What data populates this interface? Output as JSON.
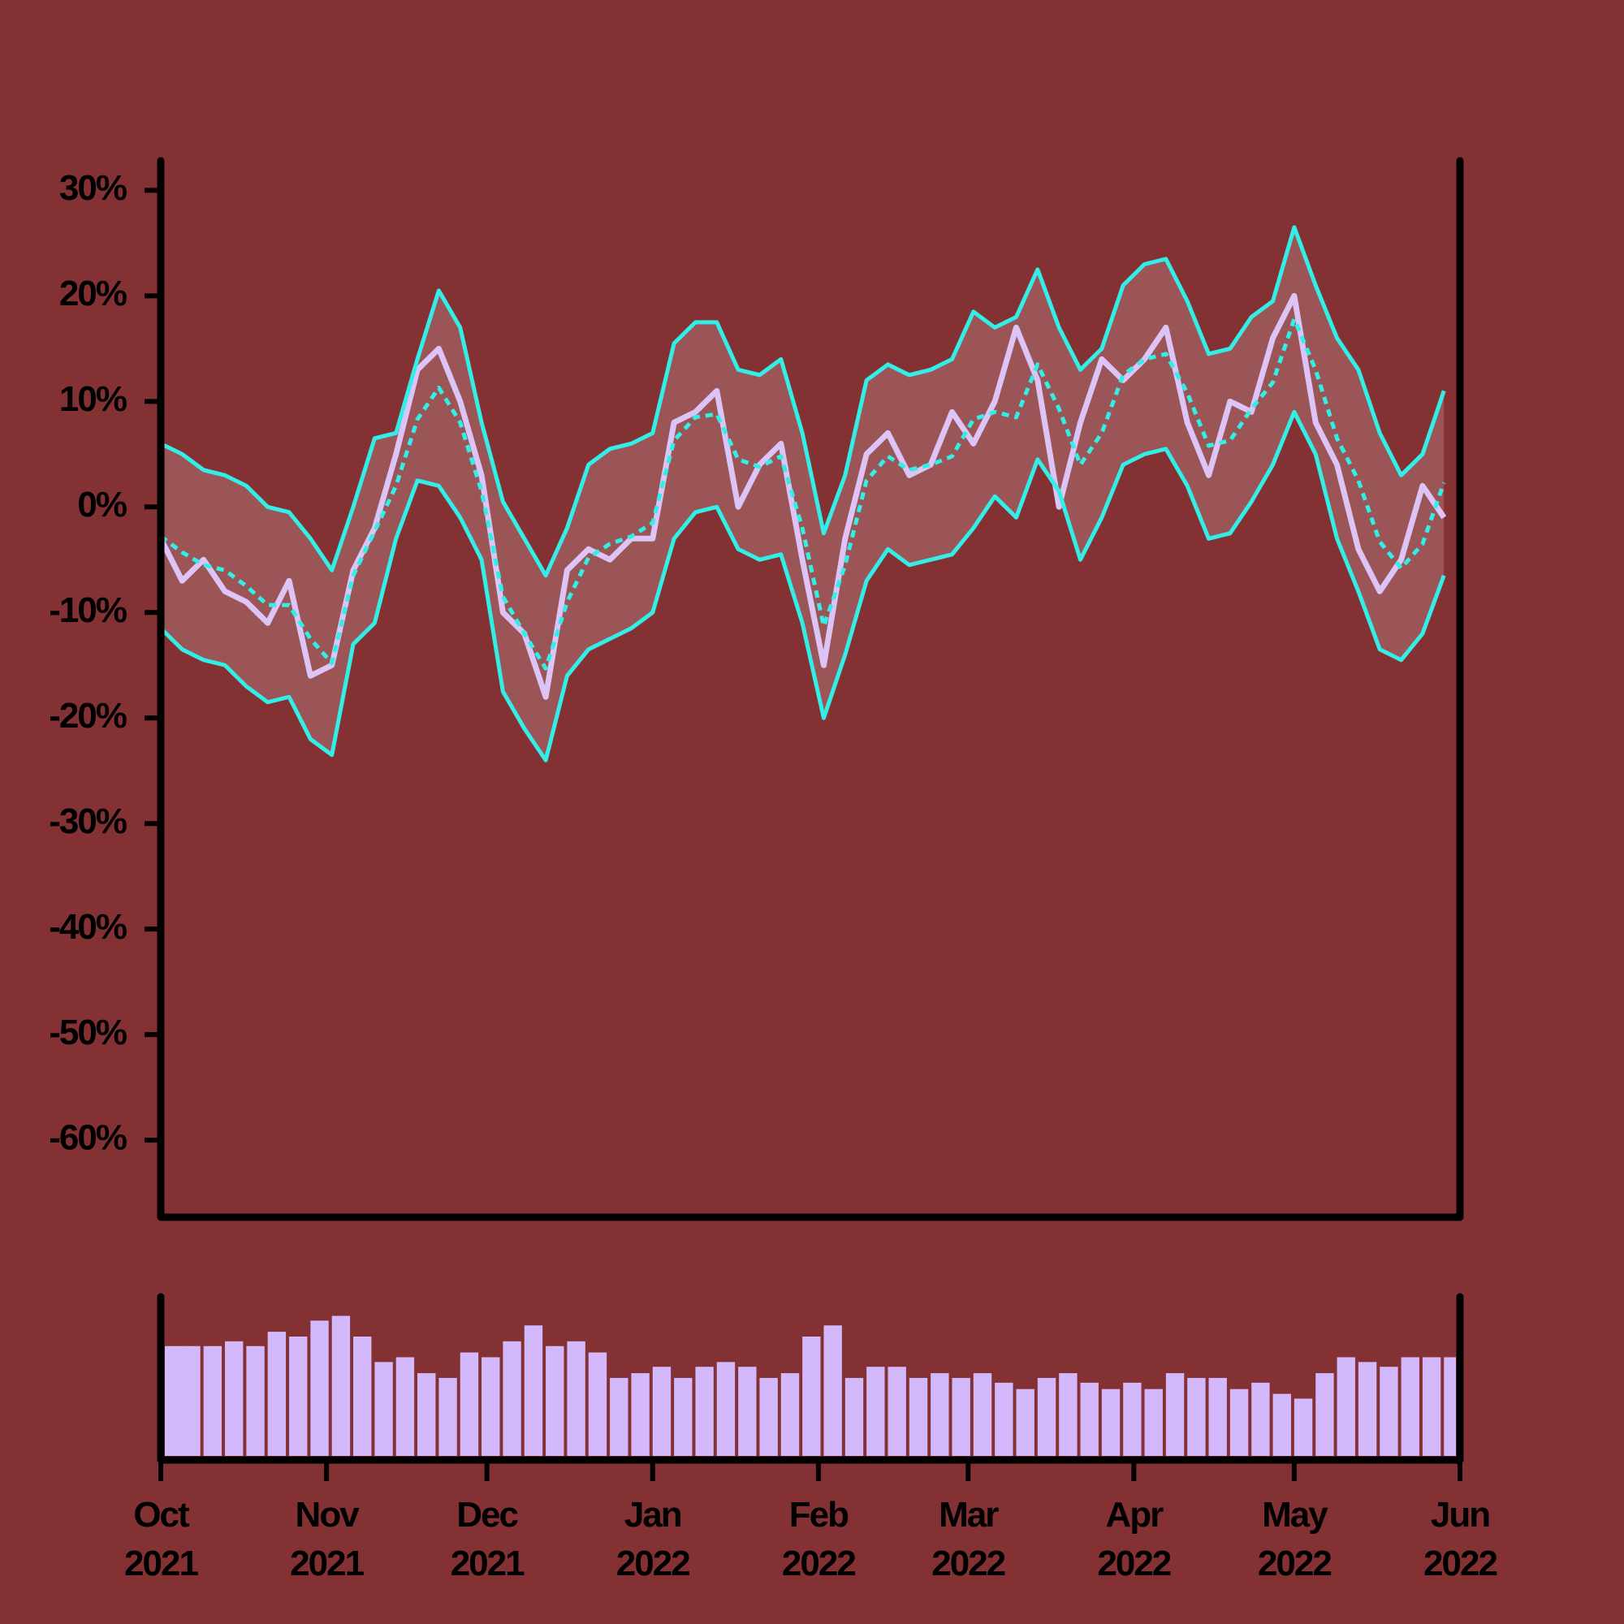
{
  "chart_data": [
    {
      "type": "line",
      "x": [
        0,
        4,
        8,
        12,
        16,
        20,
        24,
        28,
        32,
        36,
        40,
        44,
        48,
        52,
        56,
        60,
        64,
        68,
        72,
        76,
        80,
        84,
        88,
        92,
        96,
        100,
        104,
        108,
        112,
        116,
        120,
        124,
        128,
        132,
        136,
        140,
        144,
        148,
        152,
        156,
        160,
        164,
        168,
        172,
        176,
        180,
        184,
        188,
        192,
        196,
        200,
        204,
        208,
        212,
        216,
        220,
        224,
        228,
        232,
        236,
        240
      ],
      "xlim": [
        0,
        243
      ],
      "ylim": [
        -67.3,
        32.8
      ],
      "yticks": [
        {
          "value": 30,
          "label": "30%"
        },
        {
          "value": 20,
          "label": "20%"
        },
        {
          "value": 10,
          "label": "10%"
        },
        {
          "value": 0,
          "label": "0%"
        },
        {
          "value": -10,
          "label": "-10%"
        },
        {
          "value": -20,
          "label": "-20%"
        },
        {
          "value": -30,
          "label": "-30%"
        },
        {
          "value": -40,
          "label": "-40%"
        },
        {
          "value": -50,
          "label": "-50%"
        },
        {
          "value": -60,
          "label": "-60%"
        }
      ],
      "band_color": "#a05c5e",
      "series": [
        {
          "color": "#dcc4f7",
          "values": [
            -3,
            -7,
            -5,
            -8,
            -9,
            -11,
            -7,
            -16,
            -15,
            -6,
            -2,
            5,
            13,
            15,
            10,
            3,
            -10,
            -12,
            -18,
            -6,
            -4,
            -5,
            -3,
            -3,
            8,
            9,
            11,
            0,
            4,
            6,
            -5,
            -15,
            -3,
            5,
            7,
            3,
            4,
            9,
            6,
            10,
            17,
            12,
            0,
            8,
            14,
            12,
            14,
            17,
            8,
            3,
            10,
            9,
            16,
            20,
            8,
            4,
            -4,
            -8,
            -5,
            2,
            -1
          ]
        },
        {
          "color": "#33eee6",
          "dashed": true,
          "values": [
            -2.8,
            -4.3,
            -5.5,
            -6,
            -7.5,
            -9.3,
            -9.3,
            -12.5,
            -14.8,
            -6.5,
            -2.3,
            2,
            8.3,
            11.3,
            8,
            1.5,
            -8.5,
            -12,
            -15.3,
            -9,
            -4.8,
            -3.5,
            -2.8,
            -1.5,
            6.3,
            8.5,
            8.8,
            4.5,
            3.8,
            4.8,
            -2,
            -11.3,
            -5.5,
            2.5,
            4.8,
            3.5,
            4,
            4.8,
            8.3,
            9,
            8.5,
            13.5,
            9.3,
            4,
            7,
            12.5,
            14,
            14.5,
            10.8,
            5.8,
            6.3,
            9.3,
            11.8,
            17.8,
            13,
            6.5,
            2.5,
            -3.3,
            -5.8,
            -3.5,
            2.3
          ]
        },
        {
          "color": "#33eee6",
          "values": [
            6,
            5,
            3.5,
            3,
            2,
            0,
            -0.5,
            -3,
            -6,
            0,
            6.5,
            7,
            14,
            20.5,
            17,
            8,
            0.5,
            -3,
            -6.5,
            -2,
            4,
            5.5,
            6,
            7,
            15.5,
            17.5,
            17.5,
            13,
            12.5,
            14,
            7,
            -2.5,
            3,
            12,
            13.5,
            12.5,
            13,
            14,
            18.5,
            17,
            18,
            22.5,
            17,
            13,
            15,
            21,
            23,
            23.5,
            19.5,
            14.5,
            15,
            18,
            19.5,
            26.5,
            21,
            16,
            13,
            7,
            3,
            5,
            11
          ]
        },
        {
          "color": "#33eee6",
          "values": [
            -11.5,
            -13.5,
            -14.5,
            -15,
            -17,
            -18.5,
            -18,
            -22,
            -23.5,
            -13,
            -11,
            -3,
            2.5,
            2,
            -1,
            -5,
            -17.5,
            -21,
            -24,
            -16,
            -13.5,
            -12.5,
            -11.5,
            -10,
            -3,
            -0.5,
            0,
            -4,
            -5,
            -4.5,
            -11,
            -20,
            -14,
            -7,
            -4,
            -5.5,
            -5,
            -4.5,
            -2,
            1,
            -1,
            4.5,
            1.5,
            -5,
            -1,
            4,
            5,
            5.5,
            2,
            -3,
            -2.5,
            0.5,
            4,
            9,
            5,
            -3,
            -8,
            -13.5,
            -14.5,
            -12,
            -6.5
          ]
        }
      ]
    },
    {
      "type": "bar",
      "x": [
        0,
        4,
        8,
        12,
        16,
        20,
        24,
        28,
        32,
        36,
        40,
        44,
        48,
        52,
        56,
        60,
        64,
        68,
        72,
        76,
        80,
        84,
        88,
        92,
        96,
        100,
        104,
        108,
        112,
        116,
        120,
        124,
        128,
        132,
        136,
        140,
        144,
        148,
        152,
        156,
        160,
        164,
        168,
        172,
        176,
        180,
        184,
        188,
        192,
        196,
        200,
        204,
        208,
        212,
        216,
        220,
        224,
        228,
        232,
        236,
        240
      ],
      "xlim": [
        0,
        243
      ],
      "ylim": [
        0,
        100
      ],
      "color": "#d3b9fb",
      "values": [
        69,
        69,
        69,
        72,
        69,
        78,
        75,
        85,
        88,
        75,
        59,
        62,
        52,
        49,
        65,
        62,
        72,
        82,
        69,
        72,
        65,
        49,
        52,
        56,
        49,
        56,
        59,
        56,
        49,
        52,
        75,
        82,
        49,
        56,
        56,
        49,
        52,
        49,
        52,
        46,
        42,
        49,
        52,
        46,
        42,
        46,
        42,
        52,
        49,
        49,
        42,
        46,
        39,
        36,
        52,
        62,
        59,
        56,
        62,
        62,
        62
      ],
      "xticks": [
        {
          "value": 0,
          "label": "Oct 2021"
        },
        {
          "value": 31,
          "label": "Nov 2021"
        },
        {
          "value": 61,
          "label": "Dec 2021"
        },
        {
          "value": 92,
          "label": "Jan 2022"
        },
        {
          "value": 123,
          "label": "Feb 2022"
        },
        {
          "value": 151,
          "label": "Mar 2022"
        },
        {
          "value": 182,
          "label": "Apr 2022"
        },
        {
          "value": 212,
          "label": "May 2022"
        },
        {
          "value": 243,
          "label": "Jun 2022"
        }
      ]
    }
  ]
}
